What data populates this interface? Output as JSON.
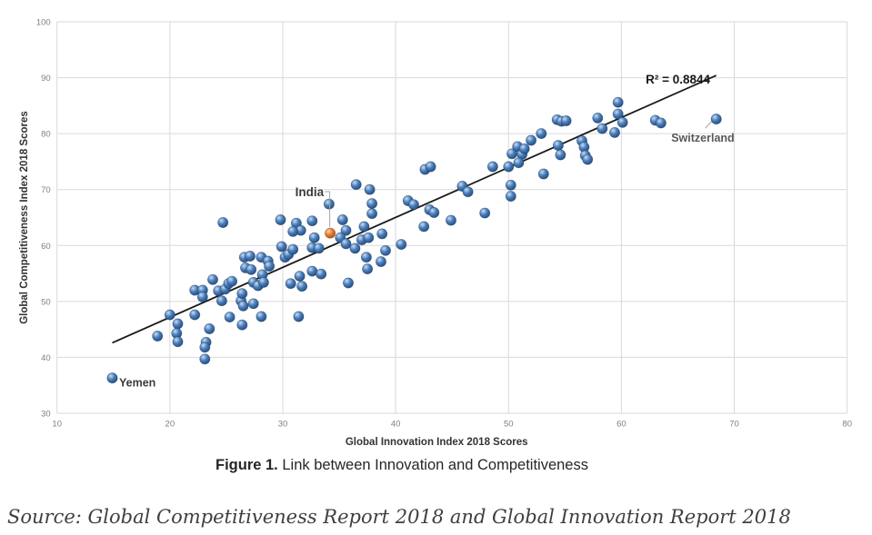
{
  "figure": {
    "caption_bold": "Figure 1.",
    "caption_rest": " Link between Innovation and Competitiveness",
    "source": "Source: Global Competitiveness Report 2018 and Global Innovation Report 2018"
  },
  "chart_data": {
    "type": "scatter",
    "xlabel": "Global Innovation Index 2018 Scores",
    "ylabel": "Global Competitiveness Index 2018 Scores",
    "xlim": [
      10,
      80
    ],
    "ylim": [
      30,
      100
    ],
    "xticks": [
      10,
      20,
      30,
      40,
      50,
      60,
      70,
      80
    ],
    "yticks": [
      30,
      40,
      50,
      60,
      70,
      80,
      90,
      100
    ],
    "grid": true,
    "legend": "none",
    "colors": {
      "marker": "#4a7ebb",
      "marker_edge": "#17375e",
      "highlight": "#ed7d31",
      "highlight_edge": "#843c0c",
      "gridline": "#d9d9d9",
      "tick_text": "#7f7f7f",
      "axis_title_text": "#333333",
      "trendline": "#1a1a1a",
      "connector": "#a6a6a6",
      "annotation_text": "#3b3b3b",
      "switzerland_text": "#595959"
    },
    "points": [
      [
        18.9,
        43.8
      ],
      [
        20.0,
        47.6
      ],
      [
        20.7,
        46.0
      ],
      [
        20.6,
        44.3
      ],
      [
        20.7,
        42.8
      ],
      [
        22.2,
        47.6
      ],
      [
        22.2,
        52.0
      ],
      [
        22.9,
        52.0
      ],
      [
        22.9,
        50.8
      ],
      [
        23.8,
        53.9
      ],
      [
        23.5,
        45.1
      ],
      [
        23.2,
        42.7
      ],
      [
        23.1,
        41.8
      ],
      [
        23.1,
        39.7
      ],
      [
        24.3,
        51.9
      ],
      [
        24.9,
        52.2
      ],
      [
        24.6,
        50.1
      ],
      [
        24.7,
        64.1
      ],
      [
        25.2,
        53.2
      ],
      [
        25.5,
        53.6
      ],
      [
        25.3,
        47.2
      ],
      [
        26.3,
        50.1
      ],
      [
        26.5,
        49.2
      ],
      [
        26.4,
        51.4
      ],
      [
        26.4,
        45.8
      ],
      [
        26.6,
        57.9
      ],
      [
        27.1,
        58.1
      ],
      [
        26.7,
        56.0
      ],
      [
        27.2,
        55.7
      ],
      [
        27.4,
        53.4
      ],
      [
        27.8,
        52.8
      ],
      [
        27.4,
        49.6
      ],
      [
        28.1,
        57.9
      ],
      [
        28.2,
        54.8
      ],
      [
        28.3,
        53.4
      ],
      [
        28.7,
        57.2
      ],
      [
        28.8,
        56.3
      ],
      [
        28.1,
        47.3
      ],
      [
        29.8,
        64.6
      ],
      [
        29.9,
        59.8
      ],
      [
        30.2,
        57.9
      ],
      [
        30.5,
        58.4
      ],
      [
        30.9,
        59.3
      ],
      [
        30.7,
        53.2
      ],
      [
        31.5,
        54.5
      ],
      [
        31.7,
        52.7
      ],
      [
        31.4,
        47.3
      ],
      [
        31.2,
        64.0
      ],
      [
        31.6,
        62.7
      ],
      [
        30.9,
        62.5
      ],
      [
        32.6,
        64.4
      ],
      [
        32.8,
        61.4
      ],
      [
        32.6,
        59.6
      ],
      [
        33.2,
        59.5
      ],
      [
        32.6,
        55.4
      ],
      [
        33.4,
        54.9
      ],
      [
        34.1,
        67.4
      ],
      [
        35.3,
        64.6
      ],
      [
        35.6,
        62.7
      ],
      [
        35.1,
        61.4
      ],
      [
        35.6,
        60.3
      ],
      [
        35.8,
        53.3
      ],
      [
        36.4,
        59.5
      ],
      [
        37.0,
        61.0
      ],
      [
        37.2,
        63.4
      ],
      [
        37.6,
        61.4
      ],
      [
        36.5,
        70.9
      ],
      [
        37.7,
        70.0
      ],
      [
        37.9,
        67.5
      ],
      [
        37.9,
        65.7
      ],
      [
        37.4,
        57.9
      ],
      [
        37.5,
        55.8
      ],
      [
        38.8,
        62.1
      ],
      [
        39.1,
        59.1
      ],
      [
        38.7,
        57.1
      ],
      [
        40.5,
        60.2
      ],
      [
        41.1,
        68.0
      ],
      [
        41.6,
        67.3
      ],
      [
        42.6,
        73.6
      ],
      [
        43.1,
        74.1
      ],
      [
        42.5,
        63.4
      ],
      [
        43.0,
        66.4
      ],
      [
        43.4,
        65.9
      ],
      [
        44.9,
        64.5
      ],
      [
        45.9,
        70.6
      ],
      [
        46.4,
        69.6
      ],
      [
        47.9,
        65.8
      ],
      [
        48.6,
        74.1
      ],
      [
        50.0,
        74.1
      ],
      [
        50.3,
        76.4
      ],
      [
        50.2,
        70.8
      ],
      [
        50.2,
        68.8
      ],
      [
        50.8,
        77.7
      ],
      [
        51.2,
        76.3
      ],
      [
        50.9,
        74.8
      ],
      [
        51.4,
        77.3
      ],
      [
        52.0,
        78.8
      ],
      [
        52.9,
        80.0
      ],
      [
        54.3,
        82.5
      ],
      [
        54.7,
        82.2
      ],
      [
        55.1,
        82.3
      ],
      [
        54.4,
        77.9
      ],
      [
        54.6,
        76.2
      ],
      [
        53.1,
        72.8
      ],
      [
        56.5,
        78.7
      ],
      [
        56.7,
        77.6
      ],
      [
        56.8,
        76.1
      ],
      [
        57.0,
        75.4
      ],
      [
        57.9,
        82.8
      ],
      [
        58.3,
        80.9
      ],
      [
        59.7,
        85.6
      ],
      [
        59.7,
        83.5
      ],
      [
        59.4,
        80.2
      ],
      [
        60.1,
        82.0
      ],
      [
        63.0,
        82.4
      ],
      [
        63.5,
        81.9
      ]
    ],
    "labeled_points": [
      {
        "label": "India",
        "x": 34.2,
        "y": 62.2,
        "highlight": true
      },
      {
        "label": "Yemen",
        "x": 14.9,
        "y": 36.3,
        "highlight": false
      },
      {
        "label": "Switzerland",
        "x": 68.4,
        "y": 82.6,
        "highlight": false
      }
    ],
    "trendline": {
      "x1": 14.9,
      "y1": 42.6,
      "x2": 68.4,
      "y2": 90.4
    },
    "r2_label": "R² = 0.8844"
  }
}
